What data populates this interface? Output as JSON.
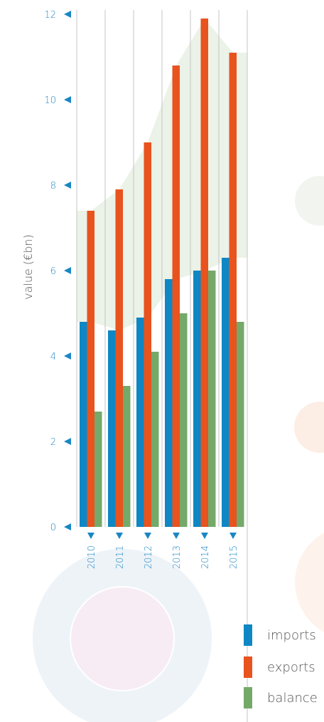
{
  "chart_data": {
    "type": "bar",
    "title": "",
    "xlabel": "",
    "ylabel": "value (€bn)",
    "categories": [
      "2010",
      "2011",
      "2012",
      "2013",
      "2014",
      "2015"
    ],
    "series": [
      {
        "name": "imports",
        "values": [
          4.8,
          4.6,
          4.9,
          5.8,
          6.0,
          6.3
        ]
      },
      {
        "name": "exports",
        "values": [
          7.4,
          7.9,
          9.0,
          10.8,
          11.9,
          11.1
        ]
      },
      {
        "name": "balance",
        "values": [
          2.7,
          3.3,
          4.1,
          5.0,
          6.0,
          4.8
        ]
      }
    ],
    "ylim": [
      0,
      12
    ],
    "yticks": [
      0,
      2,
      4,
      6,
      8,
      10,
      12
    ],
    "grid": true,
    "legend": "bottom-right",
    "band_between": [
      "imports",
      "exports"
    ]
  },
  "colors": {
    "imports": "#0e87c4",
    "exports": "#e8531e",
    "balance": "#74a96a",
    "band": "#e9f1e4",
    "tick_text": "#1a86c4",
    "axis_text": "#555555",
    "grid": "#c4c4c4"
  }
}
